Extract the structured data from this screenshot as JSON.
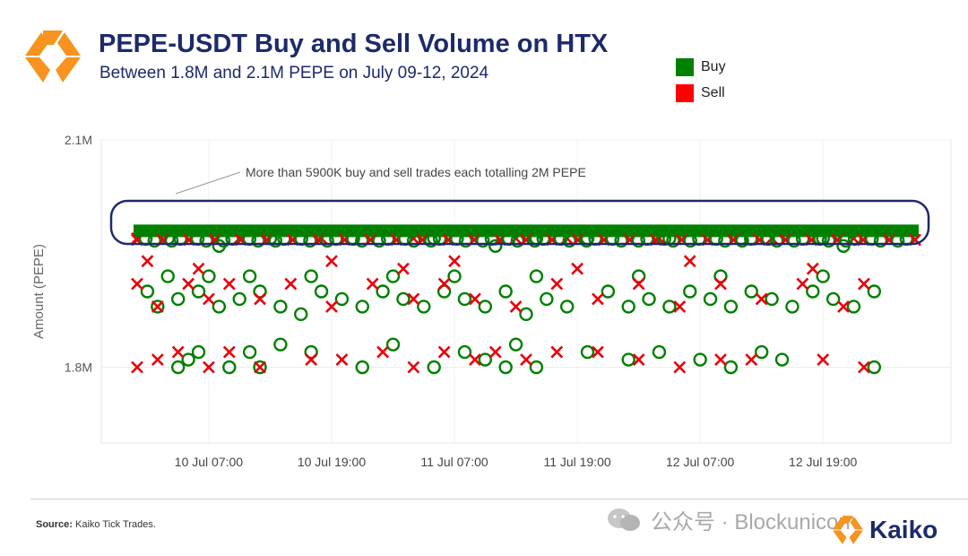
{
  "title": "PEPE-USDT Buy and Sell Volume on HTX",
  "subtitle": "Between 1.8M and 2.1M PEPE on July 09-12, 2024",
  "legend": [
    {
      "label": "Buy",
      "color": "#008000"
    },
    {
      "label": "Sell",
      "color": "#ff0000"
    }
  ],
  "annotation": "More than 5900K buy and sell trades each totalling 2M PEPE",
  "source_label": "Source:",
  "source_text": "Kaiko Tick Trades.",
  "watermark": "公众号 · Blockunicorn",
  "brand": "Kaiko",
  "colors": {
    "title": "#1d2a6b",
    "buy": "#008000",
    "sell": "#e8000a",
    "grid": "#ececec",
    "highlight": "#1d2a6b",
    "logo": "#f7931e"
  },
  "chart_data": {
    "type": "scatter",
    "ylabel": "Amount (PEPE)",
    "ylim": [
      1.7,
      2.1
    ],
    "yticks": [
      {
        "value": 2.1,
        "label": "2.1M"
      },
      {
        "value": 1.8,
        "label": "1.8M"
      }
    ],
    "xlim": [
      "2024-07-10T00:00",
      "2024-07-13T04:00"
    ],
    "xticks": [
      {
        "value": "2024-07-10T07:00",
        "label": "10 Jul 07:00"
      },
      {
        "value": "2024-07-10T19:00",
        "label": "10 Jul 19:00"
      },
      {
        "value": "2024-07-11T07:00",
        "label": "11 Jul 07:00"
      },
      {
        "value": "2024-07-11T19:00",
        "label": "11 Jul 19:00"
      },
      {
        "value": "2024-07-12T07:00",
        "label": "12 Jul 07:00"
      },
      {
        "value": "2024-07-12T19:00",
        "label": "12 Jul 19:00"
      }
    ],
    "grid": true,
    "legend_position": "top-right",
    "series": [
      {
        "name": "Buy",
        "marker": "circle",
        "points": [
          [
            "2024-07-10T04:00",
            1.8
          ],
          [
            "2024-07-10T05:00",
            1.81
          ],
          [
            "2024-07-10T06:00",
            1.82
          ],
          [
            "2024-07-10T09:00",
            1.8
          ],
          [
            "2024-07-10T11:00",
            1.82
          ],
          [
            "2024-07-10T12:00",
            1.8
          ],
          [
            "2024-07-10T14:00",
            1.83
          ],
          [
            "2024-07-10T17:00",
            1.82
          ],
          [
            "2024-07-10T22:00",
            1.8
          ],
          [
            "2024-07-11T01:00",
            1.83
          ],
          [
            "2024-07-11T05:00",
            1.8
          ],
          [
            "2024-07-11T08:00",
            1.82
          ],
          [
            "2024-07-11T10:00",
            1.81
          ],
          [
            "2024-07-11T12:00",
            1.8
          ],
          [
            "2024-07-11T13:00",
            1.83
          ],
          [
            "2024-07-11T15:00",
            1.8
          ],
          [
            "2024-07-11T20:00",
            1.82
          ],
          [
            "2024-07-12T00:00",
            1.81
          ],
          [
            "2024-07-12T03:00",
            1.82
          ],
          [
            "2024-07-12T07:00",
            1.81
          ],
          [
            "2024-07-12T10:00",
            1.8
          ],
          [
            "2024-07-12T13:00",
            1.82
          ],
          [
            "2024-07-12T15:00",
            1.81
          ],
          [
            "2024-07-13T00:00",
            1.8
          ],
          [
            "2024-07-10T01:00",
            1.9
          ],
          [
            "2024-07-10T02:00",
            1.88
          ],
          [
            "2024-07-10T04:00",
            1.89
          ],
          [
            "2024-07-10T06:00",
            1.9
          ],
          [
            "2024-07-10T08:00",
            1.88
          ],
          [
            "2024-07-10T10:00",
            1.89
          ],
          [
            "2024-07-10T12:00",
            1.9
          ],
          [
            "2024-07-10T14:00",
            1.88
          ],
          [
            "2024-07-10T16:00",
            1.87
          ],
          [
            "2024-07-10T18:00",
            1.9
          ],
          [
            "2024-07-10T20:00",
            1.89
          ],
          [
            "2024-07-10T22:00",
            1.88
          ],
          [
            "2024-07-11T00:00",
            1.9
          ],
          [
            "2024-07-11T02:00",
            1.89
          ],
          [
            "2024-07-11T04:00",
            1.88
          ],
          [
            "2024-07-11T06:00",
            1.9
          ],
          [
            "2024-07-11T08:00",
            1.89
          ],
          [
            "2024-07-11T10:00",
            1.88
          ],
          [
            "2024-07-11T12:00",
            1.9
          ],
          [
            "2024-07-11T14:00",
            1.87
          ],
          [
            "2024-07-11T16:00",
            1.89
          ],
          [
            "2024-07-11T18:00",
            1.88
          ],
          [
            "2024-07-11T22:00",
            1.9
          ],
          [
            "2024-07-12T00:00",
            1.88
          ],
          [
            "2024-07-12T02:00",
            1.89
          ],
          [
            "2024-07-12T04:00",
            1.88
          ],
          [
            "2024-07-12T06:00",
            1.9
          ],
          [
            "2024-07-12T08:00",
            1.89
          ],
          [
            "2024-07-12T10:00",
            1.88
          ],
          [
            "2024-07-12T12:00",
            1.9
          ],
          [
            "2024-07-12T14:00",
            1.89
          ],
          [
            "2024-07-12T16:00",
            1.88
          ],
          [
            "2024-07-12T18:00",
            1.9
          ],
          [
            "2024-07-12T20:00",
            1.89
          ],
          [
            "2024-07-12T22:00",
            1.88
          ],
          [
            "2024-07-13T00:00",
            1.9
          ],
          [
            "2024-07-10T03:00",
            1.92
          ],
          [
            "2024-07-10T07:00",
            1.92
          ],
          [
            "2024-07-10T11:00",
            1.92
          ],
          [
            "2024-07-10T17:00",
            1.92
          ],
          [
            "2024-07-11T01:00",
            1.92
          ],
          [
            "2024-07-11T07:00",
            1.92
          ],
          [
            "2024-07-11T15:00",
            1.92
          ],
          [
            "2024-07-12T01:00",
            1.92
          ],
          [
            "2024-07-12T09:00",
            1.92
          ],
          [
            "2024-07-12T19:00",
            1.92
          ],
          [
            "2024-07-10T03:00",
            1.97
          ],
          [
            "2024-07-10T08:00",
            1.96
          ],
          [
            "2024-07-10T13:00",
            1.97
          ],
          [
            "2024-07-10T21:00",
            1.97
          ],
          [
            "2024-07-11T05:00",
            1.97
          ],
          [
            "2024-07-11T11:00",
            1.96
          ],
          [
            "2024-07-11T15:00",
            1.97
          ],
          [
            "2024-07-11T20:00",
            1.97
          ],
          [
            "2024-07-12T04:00",
            1.97
          ],
          [
            "2024-07-12T11:00",
            1.97
          ],
          [
            "2024-07-12T19:00",
            1.97
          ],
          [
            "2024-07-12T21:00",
            1.96
          ]
        ]
      },
      {
        "name": "Sell",
        "marker": "x",
        "points": [
          [
            "2024-07-10T00:00",
            1.8
          ],
          [
            "2024-07-10T02:00",
            1.81
          ],
          [
            "2024-07-10T04:00",
            1.82
          ],
          [
            "2024-07-10T07:00",
            1.8
          ],
          [
            "2024-07-10T09:00",
            1.82
          ],
          [
            "2024-07-10T12:00",
            1.8
          ],
          [
            "2024-07-10T17:00",
            1.81
          ],
          [
            "2024-07-10T20:00",
            1.81
          ],
          [
            "2024-07-11T00:00",
            1.82
          ],
          [
            "2024-07-11T03:00",
            1.8
          ],
          [
            "2024-07-11T06:00",
            1.82
          ],
          [
            "2024-07-11T09:00",
            1.81
          ],
          [
            "2024-07-11T11:00",
            1.82
          ],
          [
            "2024-07-11T14:00",
            1.81
          ],
          [
            "2024-07-11T17:00",
            1.82
          ],
          [
            "2024-07-11T21:00",
            1.82
          ],
          [
            "2024-07-12T01:00",
            1.81
          ],
          [
            "2024-07-12T05:00",
            1.8
          ],
          [
            "2024-07-12T09:00",
            1.81
          ],
          [
            "2024-07-12T12:00",
            1.81
          ],
          [
            "2024-07-12T19:00",
            1.81
          ],
          [
            "2024-07-12T23:00",
            1.8
          ],
          [
            "2024-07-10T00:00",
            1.91
          ],
          [
            "2024-07-10T02:00",
            1.88
          ],
          [
            "2024-07-10T05:00",
            1.91
          ],
          [
            "2024-07-10T07:00",
            1.89
          ],
          [
            "2024-07-10T09:00",
            1.91
          ],
          [
            "2024-07-10T12:00",
            1.89
          ],
          [
            "2024-07-10T15:00",
            1.91
          ],
          [
            "2024-07-10T19:00",
            1.88
          ],
          [
            "2024-07-10T23:00",
            1.91
          ],
          [
            "2024-07-11T03:00",
            1.89
          ],
          [
            "2024-07-11T06:00",
            1.91
          ],
          [
            "2024-07-11T09:00",
            1.89
          ],
          [
            "2024-07-11T13:00",
            1.88
          ],
          [
            "2024-07-11T17:00",
            1.91
          ],
          [
            "2024-07-11T21:00",
            1.89
          ],
          [
            "2024-07-12T01:00",
            1.91
          ],
          [
            "2024-07-12T05:00",
            1.88
          ],
          [
            "2024-07-12T09:00",
            1.91
          ],
          [
            "2024-07-12T13:00",
            1.89
          ],
          [
            "2024-07-12T17:00",
            1.91
          ],
          [
            "2024-07-12T21:00",
            1.88
          ],
          [
            "2024-07-12T23:00",
            1.91
          ],
          [
            "2024-07-10T01:00",
            1.94
          ],
          [
            "2024-07-10T06:00",
            1.93
          ],
          [
            "2024-07-10T19:00",
            1.94
          ],
          [
            "2024-07-11T02:00",
            1.93
          ],
          [
            "2024-07-11T07:00",
            1.94
          ],
          [
            "2024-07-11T19:00",
            1.93
          ],
          [
            "2024-07-12T06:00",
            1.94
          ],
          [
            "2024-07-12T18:00",
            1.93
          ],
          [
            "2024-07-10T00:00",
            1.97
          ],
          [
            "2024-07-10T10:00",
            1.97
          ],
          [
            "2024-07-10T18:00",
            1.97
          ],
          [
            "2024-07-11T03:00",
            1.97
          ],
          [
            "2024-07-11T13:00",
            1.97
          ],
          [
            "2024-07-11T18:00",
            1.97
          ],
          [
            "2024-07-12T03:00",
            1.97
          ],
          [
            "2024-07-12T14:00",
            1.97
          ],
          [
            "2024-07-12T22:00",
            1.97
          ]
        ]
      }
    ],
    "dense_band": {
      "value": 1.98,
      "from": "2024-07-10T00:00",
      "to": "2024-07-13T04:00",
      "label": "More than 5900K buy and sell trades each totalling 2M PEPE"
    }
  }
}
